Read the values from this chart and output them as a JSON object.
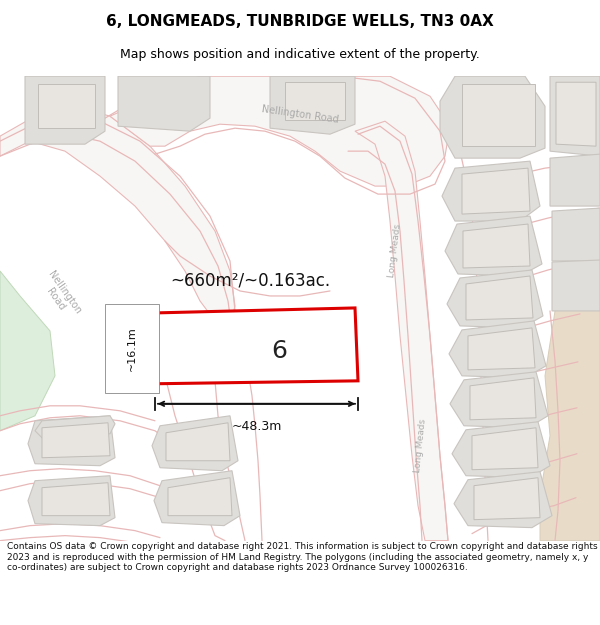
{
  "title": "6, LONGMEADS, TUNBRIDGE WELLS, TN3 0AX",
  "subtitle": "Map shows position and indicative extent of the property.",
  "footer": "Contains OS data © Crown copyright and database right 2021. This information is subject to Crown copyright and database rights 2023 and is reproduced with the permission of HM Land Registry. The polygons (including the associated geometry, namely x, y co-ordinates) are subject to Crown copyright and database rights 2023 Ordnance Survey 100026316.",
  "map_bg": "#f5f4f2",
  "road_outline_color": "#e8b8b8",
  "road_fill_color": "#f0e8e8",
  "building_fill": "#e0deda",
  "building_stroke": "#c8c4c0",
  "highlight_fill": "#ffffff",
  "highlight_stroke": "#dd0000",
  "green_fill": "#ddeedd",
  "green_stroke": "#c0d8b8",
  "tan_fill": "#e8dcc8",
  "tan_stroke": "#d8ccb8",
  "road_label_color": "#aaaaaa",
  "measure_color": "#111111",
  "area_text": "~660m²/~0.163ac.",
  "width_text": "~48.3m",
  "height_text": "~16.1m",
  "plot_number": "6",
  "title_fontsize": 11,
  "subtitle_fontsize": 9,
  "footer_fontsize": 6.5
}
